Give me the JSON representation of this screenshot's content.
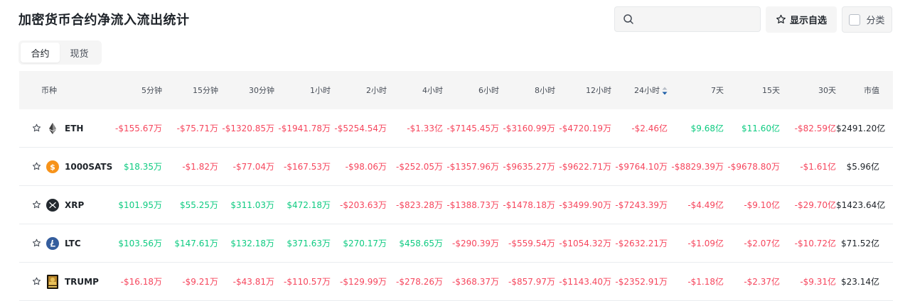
{
  "page": {
    "title": "加密货币合约净流入流出统计"
  },
  "search": {
    "placeholder": ""
  },
  "toolbar": {
    "watchlist_label": "显示自选",
    "category_label": "分类"
  },
  "tabs": [
    {
      "label": "合约",
      "active": true
    },
    {
      "label": "现货",
      "active": false
    }
  ],
  "colors": {
    "negative": "#f6465d",
    "positive": "#0ecb81",
    "header_bg": "#f5f5f5"
  },
  "table": {
    "headers": [
      "币种",
      "5分钟",
      "15分钟",
      "30分钟",
      "1小时",
      "2小时",
      "4小时",
      "6小时",
      "8小时",
      "12小时",
      "24小时",
      "7天",
      "15天",
      "30天",
      "市值"
    ],
    "sorted_column": "24小时",
    "rows": [
      {
        "symbol": "ETH",
        "icon": "eth-icon",
        "values": [
          "-$155.67万",
          "-$75.71万",
          "-$1320.85万",
          "-$1941.78万",
          "-$5254.54万",
          "-$1.33亿",
          "-$7145.45万",
          "-$3160.99万",
          "-$4720.19万",
          "-$2.46亿",
          "$9.68亿",
          "$11.60亿",
          "-$82.59亿"
        ],
        "mcap": "$2491.20亿"
      },
      {
        "symbol": "1000SATS",
        "icon": "sats-icon",
        "values": [
          "$18.35万",
          "-$1.82万",
          "-$77.04万",
          "-$167.53万",
          "-$98.06万",
          "-$252.05万",
          "-$1357.96万",
          "-$9635.27万",
          "-$9622.71万",
          "-$9764.10万",
          "-$8829.39万",
          "-$9678.80万",
          "-$1.61亿"
        ],
        "mcap": "$5.96亿"
      },
      {
        "symbol": "XRP",
        "icon": "xrp-icon",
        "values": [
          "$101.95万",
          "$55.25万",
          "$311.03万",
          "$472.18万",
          "-$203.63万",
          "-$823.28万",
          "-$1388.73万",
          "-$1478.18万",
          "-$3499.90万",
          "-$7243.39万",
          "-$4.49亿",
          "-$9.10亿",
          "-$29.70亿"
        ],
        "mcap": "$1423.64亿"
      },
      {
        "symbol": "LTC",
        "icon": "ltc-icon",
        "values": [
          "$103.56万",
          "$147.61万",
          "$132.18万",
          "$371.63万",
          "$270.17万",
          "$458.65万",
          "-$290.39万",
          "-$559.54万",
          "-$1054.32万",
          "-$2632.21万",
          "-$1.09亿",
          "-$2.07亿",
          "-$10.72亿"
        ],
        "mcap": "$71.52亿"
      },
      {
        "symbol": "TRUMP",
        "icon": "trump-icon",
        "values": [
          "-$16.18万",
          "-$9.21万",
          "-$43.81万",
          "-$110.57万",
          "-$129.99万",
          "-$278.26万",
          "-$368.37万",
          "-$857.97万",
          "-$1143.40万",
          "-$2352.91万",
          "-$1.18亿",
          "-$2.37亿",
          "-$9.31亿"
        ],
        "mcap": "$23.14亿"
      }
    ]
  }
}
